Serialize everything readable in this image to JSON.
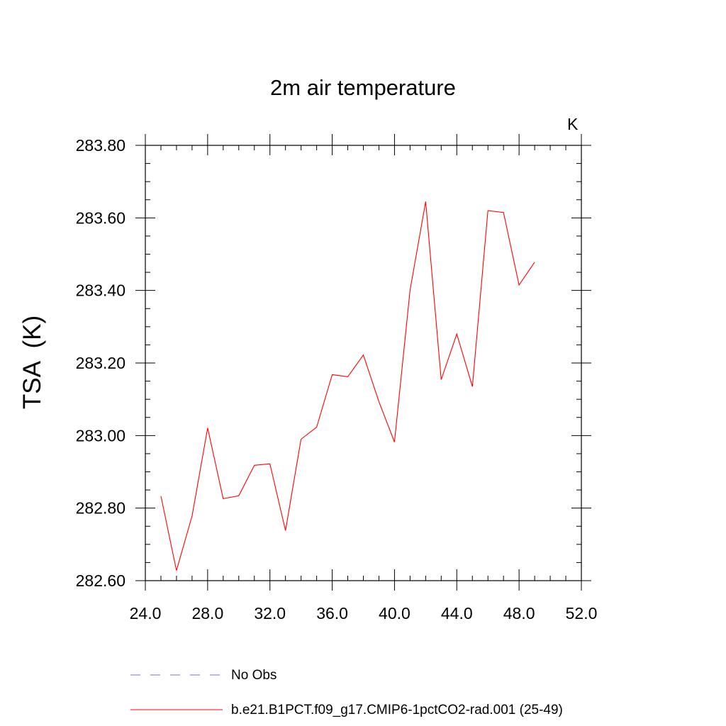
{
  "chart_data": {
    "type": "line",
    "title": "2m air temperature",
    "units_label": "K",
    "ylabel": "TSA  (K)",
    "xlabel": "",
    "xlim": [
      24.0,
      52.0
    ],
    "ylim": [
      282.6,
      283.8
    ],
    "x_ticks": [
      "24.0",
      "28.0",
      "32.0",
      "36.0",
      "40.0",
      "44.0",
      "48.0",
      "52.0"
    ],
    "y_ticks": [
      "282.60",
      "282.80",
      "283.00",
      "283.20",
      "283.40",
      "283.60",
      "283.80"
    ],
    "x_tick_values": [
      24,
      28,
      32,
      36,
      40,
      44,
      48,
      52
    ],
    "y_tick_values": [
      282.6,
      282.8,
      283.0,
      283.2,
      283.4,
      283.6,
      283.8
    ],
    "grid": false,
    "legend_position": "bottom",
    "series": [
      {
        "name": "No Obs",
        "color": "#7a6fd0",
        "dash": "dashed",
        "x": [],
        "values": []
      },
      {
        "name": "b.e21.B1PCT.f09_g17.CMIP6-1pctCO2-rad.001 (25-49)",
        "color": "#ff0000",
        "dash": "solid",
        "x": [
          25,
          26,
          27,
          28,
          29,
          30,
          31,
          32,
          33,
          34,
          35,
          36,
          37,
          38,
          39,
          40,
          41,
          42,
          43,
          44,
          45,
          46,
          47,
          48,
          49
        ],
        "values": [
          282.833,
          282.628,
          282.778,
          283.021,
          282.826,
          282.834,
          282.918,
          282.922,
          282.738,
          282.99,
          283.023,
          283.168,
          283.162,
          283.222,
          283.093,
          282.982,
          283.401,
          283.645,
          283.154,
          283.28,
          283.135,
          283.62,
          283.615,
          283.415,
          283.478
        ]
      }
    ]
  }
}
